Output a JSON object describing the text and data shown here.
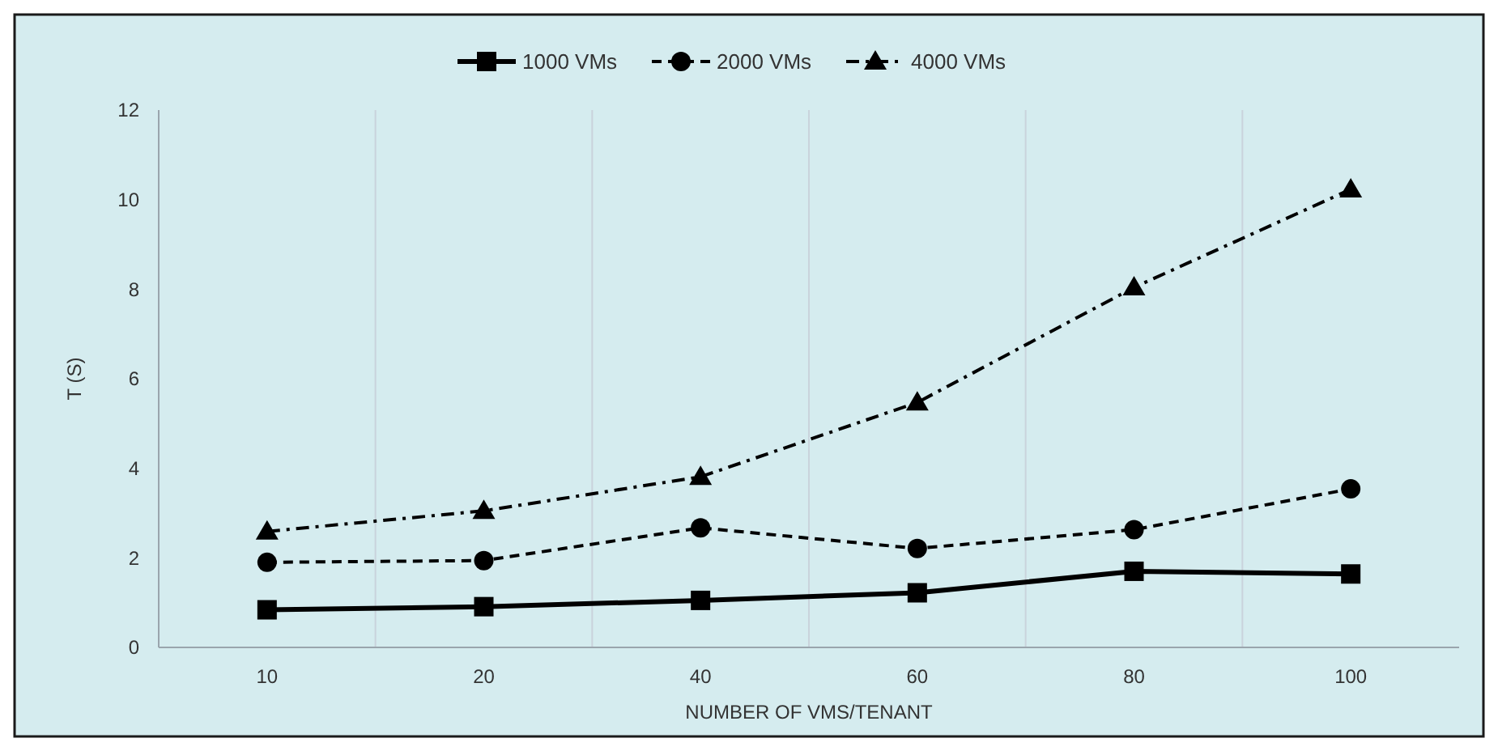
{
  "chart_data": {
    "type": "line",
    "xlabel": "NUMBER OF VMS/TENANT",
    "ylabel": "T (S)",
    "categories": [
      "10",
      "20",
      "40",
      "60",
      "80",
      "100"
    ],
    "ylim": [
      0,
      12
    ],
    "yticks": [
      0,
      2,
      4,
      6,
      8,
      10,
      12
    ],
    "grid": "x",
    "legend": "top",
    "series": [
      {
        "name": "1000 VMs",
        "color": "#000000",
        "marker": "square",
        "line_style": "solid",
        "values": [
          0.84,
          0.91,
          1.05,
          1.22,
          1.7,
          1.64
        ]
      },
      {
        "name": "2000 VMs",
        "color": "#000000",
        "marker": "circle",
        "line_style": "dashed",
        "values": [
          1.9,
          1.94,
          2.67,
          2.21,
          2.63,
          3.54
        ]
      },
      {
        "name": "4000 VMs",
        "color": "#000000",
        "marker": "triangle",
        "line_style": "dashdot",
        "values": [
          2.59,
          3.05,
          3.81,
          5.47,
          8.04,
          10.23
        ]
      }
    ]
  }
}
